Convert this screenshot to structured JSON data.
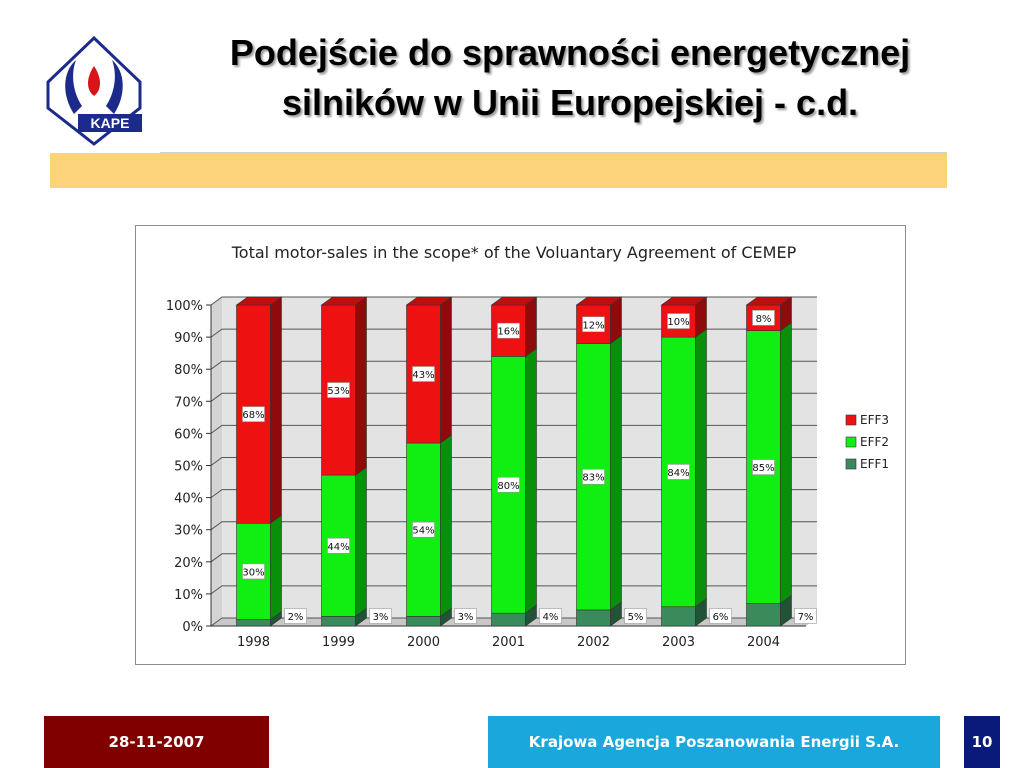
{
  "slide": {
    "title_line1": "Podejście do sprawności energetycznej",
    "title_line2": "silników w Unii Europejskiej - c.d.",
    "logo_text": "KAPE",
    "footer_date": "28-11-2007",
    "footer_org": "Krajowa Agencja Poszanowania Energii S.A.",
    "page_number": "10"
  },
  "colors": {
    "eff3": "#ee1111",
    "eff2": "#11ee11",
    "eff1": "#3a8a5c",
    "title_band": "#fcd27a",
    "footer_date_bg": "#800000",
    "footer_org_bg": "#1aa7dc",
    "footer_page_bg": "#0a1a7a"
  },
  "chart_data": {
    "type": "bar",
    "stacked": true,
    "three_d": true,
    "title": "Total motor-sales in the scope* of the Voluantary Agreement of CEMEP",
    "categories": [
      "1998",
      "1999",
      "2000",
      "2001",
      "2002",
      "2003",
      "2004"
    ],
    "series": [
      {
        "name": "EFF1",
        "values": [
          2,
          3,
          3,
          4,
          5,
          6,
          7
        ],
        "labels": [
          "2%",
          "3%",
          "3%",
          "4%",
          "5%",
          "6%",
          "7%"
        ]
      },
      {
        "name": "EFF2",
        "values": [
          30,
          44,
          54,
          80,
          83,
          84,
          85
        ],
        "labels": [
          "30%",
          "44%",
          "54%",
          "80%",
          "83%",
          "84%",
          "85%"
        ]
      },
      {
        "name": "EFF3",
        "values": [
          68,
          53,
          43,
          16,
          12,
          10,
          8
        ],
        "labels": [
          "68%",
          "53%",
          "43%",
          "16%",
          "12%",
          "10%",
          "8%"
        ]
      }
    ],
    "legend_order": [
      "EFF3",
      "EFF2",
      "EFF1"
    ],
    "yticks": [
      "0%",
      "10%",
      "20%",
      "30%",
      "40%",
      "50%",
      "60%",
      "70%",
      "80%",
      "90%",
      "100%"
    ],
    "ylim": [
      0,
      100
    ],
    "xlabel": "",
    "ylabel": "",
    "grid": true,
    "legend_position": "right"
  }
}
